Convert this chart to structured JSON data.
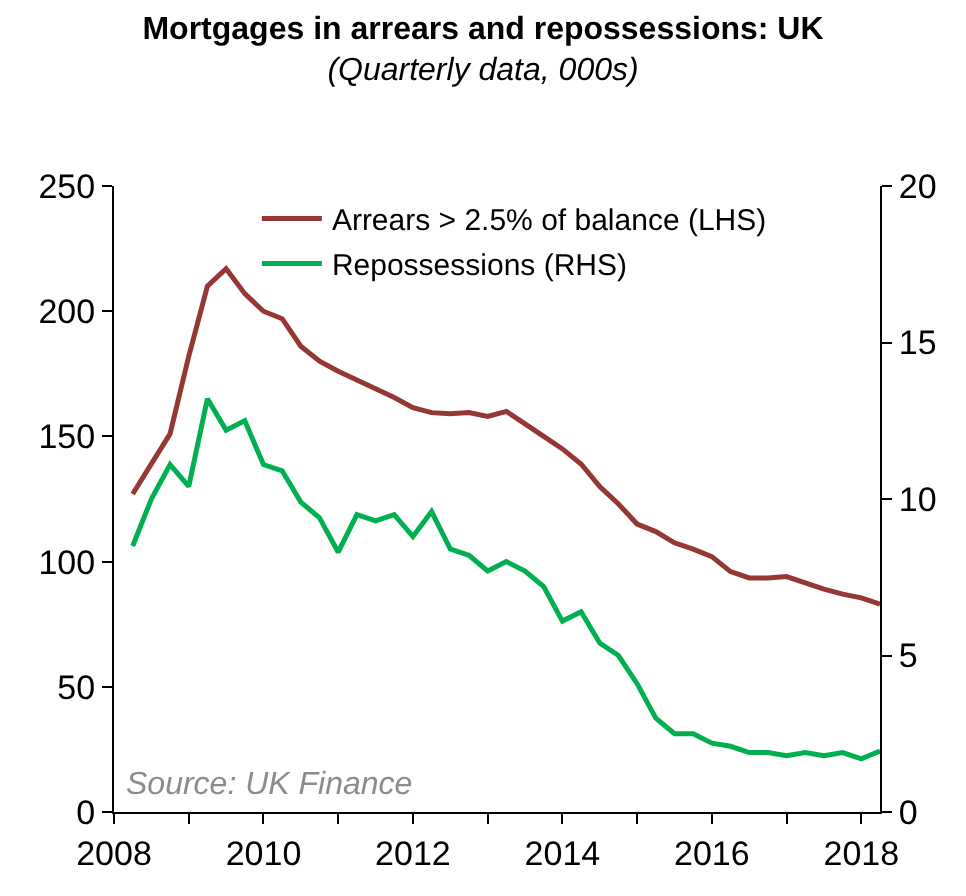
{
  "chart_data": {
    "type": "line",
    "title": "Mortgages in arrears and repossessions: UK",
    "subtitle": "(Quarterly data, 000s)",
    "x": [
      2008.25,
      2008.5,
      2008.75,
      2009,
      2009.25,
      2009.5,
      2009.75,
      2010,
      2010.25,
      2010.5,
      2010.75,
      2011,
      2011.25,
      2011.5,
      2011.75,
      2012,
      2012.25,
      2012.5,
      2012.75,
      2013,
      2013.25,
      2013.5,
      2013.75,
      2014,
      2014.25,
      2014.5,
      2014.75,
      2015,
      2015.25,
      2015.5,
      2015.75,
      2016,
      2016.25,
      2016.5,
      2016.75,
      2017,
      2017.25,
      2017.5,
      2017.75,
      2018,
      2018.25
    ],
    "series": [
      {
        "name": "Arrears > 2.5% of balance (LHS)",
        "color": "#953735",
        "values": [
          127,
          139,
          151,
          182,
          210,
          217,
          207,
          200,
          197,
          186,
          180,
          176,
          172.5,
          169,
          165.5,
          161.5,
          159.5,
          159,
          159.5,
          158,
          160,
          155,
          150,
          145,
          139,
          130,
          123,
          115,
          112,
          107.5,
          105,
          102,
          96,
          93.5,
          93.5,
          94,
          91.5,
          89,
          87,
          85.5,
          83
        ]
      },
      {
        "name": "Repossessions (RHS)",
        "color": "#00b050",
        "axis": "y2",
        "values": [
          8.5,
          10.0,
          11.1,
          10.4,
          13.2,
          12.2,
          12.5,
          11.1,
          10.9,
          9.9,
          9.4,
          8.3,
          9.5,
          9.3,
          9.5,
          8.8,
          9.6,
          8.4,
          8.2,
          7.7,
          8.0,
          7.7,
          7.2,
          6.1,
          6.4,
          5.4,
          5.0,
          4.1,
          3.0,
          2.5,
          2.5,
          2.2,
          2.1,
          1.9,
          1.9,
          1.8,
          1.9,
          1.8,
          1.9,
          1.7,
          1.95
        ]
      }
    ],
    "xlim": [
      2008,
      2018.25
    ],
    "xticks": [
      2008,
      {
        "value": 2009,
        "label": null
      },
      2010,
      {
        "value": 2011,
        "label": null
      },
      2012,
      {
        "value": 2013,
        "label": null
      },
      2014,
      {
        "value": 2015,
        "label": null
      },
      2016,
      {
        "value": 2017,
        "label": null
      },
      2018
    ],
    "ylim": [
      0,
      250
    ],
    "yticks": [
      0,
      50,
      100,
      150,
      200,
      250
    ],
    "y2lim": [
      0,
      20
    ],
    "y2ticks": [
      0,
      5,
      10,
      15,
      20
    ],
    "legend": "top",
    "marker": "none",
    "line_style": "solid",
    "annotations": [
      "Source: UK Finance"
    ]
  }
}
